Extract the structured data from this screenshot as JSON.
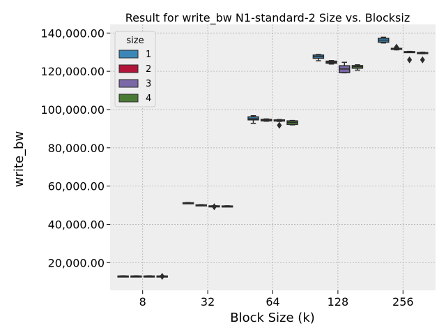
{
  "chart_data": {
    "type": "box",
    "title": "Result for write_bw N1-standard-2 Size vs. Blocksiz",
    "xlabel": "Block Size (k)",
    "ylabel": "write_bw",
    "categories": [
      "8",
      "32",
      "64",
      "128",
      "256"
    ],
    "ylim": [
      5500,
      144500
    ],
    "yticks": [
      20000,
      40000,
      60000,
      80000,
      100000,
      120000,
      140000
    ],
    "ytick_labels": [
      "20,000.00",
      "40,000.00",
      "60,000.00",
      "80,000.00",
      "100,000.00",
      "120,000.00",
      "140,000.00"
    ],
    "grid": true,
    "legend": {
      "title": "size",
      "placement": "top-left",
      "entries": [
        "1",
        "2",
        "3",
        "4"
      ]
    },
    "colors": {
      "background": "#eeeeee",
      "grid": "#b0b0b0",
      "box_stroke": "#2b2b2b",
      "series": [
        "#3a87b7",
        "#b1163a",
        "#7b68a6",
        "#4b7a34"
      ]
    },
    "series": [
      {
        "name": "1",
        "boxes": [
          {
            "category": "8",
            "whisker_low": 12800,
            "q1": 12900,
            "median": 12950,
            "q3": 13000,
            "whisker_high": 13100,
            "outliers": []
          },
          {
            "category": "32",
            "whisker_low": 51000,
            "q1": 51100,
            "median": 51200,
            "q3": 51300,
            "whisker_high": 51400,
            "outliers": []
          },
          {
            "category": "64",
            "whisker_low": 92800,
            "q1": 94600,
            "median": 95200,
            "q3": 96200,
            "whisker_high": 96800,
            "outliers": []
          },
          {
            "category": "128",
            "whisker_low": 125500,
            "q1": 126800,
            "median": 127800,
            "q3": 128500,
            "whisker_high": 128800,
            "outliers": []
          },
          {
            "category": "256",
            "whisker_low": 134800,
            "q1": 135200,
            "median": 136300,
            "q3": 137300,
            "whisker_high": 137800,
            "outliers": []
          }
        ]
      },
      {
        "name": "2",
        "boxes": [
          {
            "category": "8",
            "whisker_low": 12800,
            "q1": 12900,
            "median": 12950,
            "q3": 13000,
            "whisker_high": 13100,
            "outliers": []
          },
          {
            "category": "32",
            "whisker_low": 49900,
            "q1": 50000,
            "median": 50100,
            "q3": 50200,
            "whisker_high": 50300,
            "outliers": []
          },
          {
            "category": "64",
            "whisker_low": 93900,
            "q1": 94100,
            "median": 94400,
            "q3": 94900,
            "whisker_high": 95100,
            "outliers": []
          },
          {
            "category": "128",
            "whisker_low": 123800,
            "q1": 124200,
            "median": 124700,
            "q3": 125300,
            "whisker_high": 125600,
            "outliers": []
          },
          {
            "category": "256",
            "whisker_low": 131200,
            "q1": 131500,
            "median": 131800,
            "q3": 132000,
            "whisker_high": 132200,
            "outliers": [
              132600
            ]
          }
        ]
      },
      {
        "name": "3",
        "boxes": [
          {
            "category": "8",
            "whisker_low": 12800,
            "q1": 12900,
            "median": 12950,
            "q3": 13000,
            "whisker_high": 13100,
            "outliers": []
          },
          {
            "category": "32",
            "whisker_low": 49500,
            "q1": 49550,
            "median": 49600,
            "q3": 49650,
            "whisker_high": 49700,
            "outliers": [
              49200
            ]
          },
          {
            "category": "64",
            "whisker_low": 93800,
            "q1": 94000,
            "median": 94200,
            "q3": 94600,
            "whisker_high": 94800,
            "outliers": [
              91800
            ]
          },
          {
            "category": "128",
            "whisker_low": 119200,
            "q1": 119300,
            "median": 121200,
            "q3": 122900,
            "whisker_high": 124700,
            "outliers": []
          },
          {
            "category": "256",
            "whisker_low": 130000,
            "q1": 130100,
            "median": 130200,
            "q3": 130300,
            "whisker_high": 130400,
            "outliers": [
              126000
            ]
          }
        ]
      },
      {
        "name": "4",
        "boxes": [
          {
            "category": "8",
            "whisker_low": 12800,
            "q1": 12900,
            "median": 12950,
            "q3": 13000,
            "whisker_high": 13100,
            "outliers": [
              12800
            ]
          },
          {
            "category": "32",
            "whisker_low": 49400,
            "q1": 49450,
            "median": 49500,
            "q3": 49600,
            "whisker_high": 49700,
            "outliers": []
          },
          {
            "category": "64",
            "whisker_low": 92000,
            "q1": 92200,
            "median": 93300,
            "q3": 94100,
            "whisker_high": 94300,
            "outliers": []
          },
          {
            "category": "128",
            "whisker_low": 120600,
            "q1": 121600,
            "median": 122400,
            "q3": 123000,
            "whisker_high": 123400,
            "outliers": []
          },
          {
            "category": "256",
            "whisker_low": 129200,
            "q1": 129400,
            "median": 129600,
            "q3": 129800,
            "whisker_high": 130000,
            "outliers": [
              126000
            ]
          }
        ]
      }
    ]
  }
}
